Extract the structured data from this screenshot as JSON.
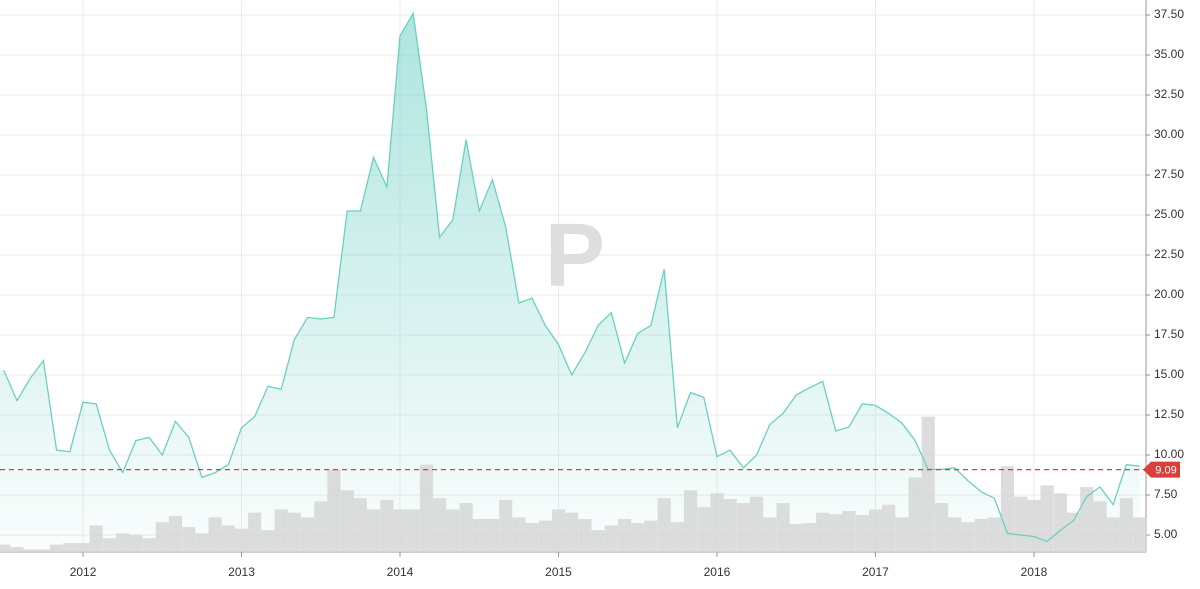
{
  "chart_data": {
    "type": "line",
    "watermark": "P",
    "color": "#6ccfc3",
    "volume_color": "#d6d6d6",
    "last_price": {
      "value": 9.09,
      "label": "9.09",
      "color": "#d9403b"
    },
    "grid": true,
    "xlim": [
      2011.476,
      2018.707
    ],
    "xticks": [
      2012,
      2013,
      2014,
      2015,
      2016,
      2017,
      2018
    ],
    "ylim": [
      3.94,
      38.44
    ],
    "yticks": [
      {
        "value": 5,
        "label": "5.00"
      },
      {
        "value": 7.5,
        "label": "7.50"
      },
      {
        "value": 10,
        "label": "10.00"
      },
      {
        "value": 12.5,
        "label": "12.50"
      },
      {
        "value": 15,
        "label": "15.00"
      },
      {
        "value": 17.5,
        "label": "17.50"
      },
      {
        "value": 20,
        "label": "20.00"
      },
      {
        "value": 22.5,
        "label": "22.50"
      },
      {
        "value": 25,
        "label": "25.00"
      },
      {
        "value": 27.5,
        "label": "27.50"
      },
      {
        "value": 30,
        "label": "30.00"
      },
      {
        "value": 32.5,
        "label": "32.50"
      },
      {
        "value": 35,
        "label": "35.00"
      },
      {
        "value": 37.5,
        "label": "37.50"
      }
    ],
    "x": [
      2011.5,
      2011.583,
      2011.667,
      2011.75,
      2011.833,
      2011.917,
      2012,
      2012.083,
      2012.167,
      2012.25,
      2012.333,
      2012.417,
      2012.5,
      2012.583,
      2012.667,
      2012.75,
      2012.833,
      2012.917,
      2013,
      2013.083,
      2013.167,
      2013.25,
      2013.333,
      2013.417,
      2013.5,
      2013.583,
      2013.667,
      2013.75,
      2013.833,
      2013.917,
      2014,
      2014.083,
      2014.167,
      2014.25,
      2014.333,
      2014.417,
      2014.5,
      2014.583,
      2014.667,
      2014.75,
      2014.833,
      2014.917,
      2015,
      2015.083,
      2015.167,
      2015.25,
      2015.333,
      2015.417,
      2015.5,
      2015.583,
      2015.667,
      2015.75,
      2015.833,
      2015.917,
      2016,
      2016.083,
      2016.167,
      2016.25,
      2016.333,
      2016.417,
      2016.5,
      2016.583,
      2016.667,
      2016.75,
      2016.833,
      2016.917,
      2017,
      2017.083,
      2017.167,
      2017.25,
      2017.333,
      2017.417,
      2017.5,
      2017.583,
      2017.667,
      2017.75,
      2017.833,
      2017.917,
      2018,
      2018.083,
      2018.167,
      2018.25,
      2018.333,
      2018.417,
      2018.5,
      2018.583,
      2018.667
    ],
    "values": [
      15.3,
      13.4,
      14.8,
      15.9,
      10.3,
      10.2,
      13.3,
      13.2,
      10.3,
      8.9,
      10.9,
      11.1,
      10.0,
      12.1,
      11.1,
      8.6,
      8.9,
      9.4,
      11.7,
      12.4,
      14.3,
      14.1,
      17.2,
      18.6,
      18.5,
      18.6,
      25.25,
      25.25,
      28.6,
      26.75,
      36.2,
      37.6,
      31.6,
      23.6,
      24.7,
      29.7,
      25.25,
      27.2,
      24.25,
      19.5,
      19.8,
      18.1,
      16.9,
      15.0,
      16.4,
      18.1,
      18.9,
      15.75,
      17.6,
      18.1,
      21.6,
      11.7,
      13.9,
      13.6,
      9.9,
      10.3,
      9.2,
      10.0,
      11.9,
      12.6,
      13.75,
      14.2,
      14.6,
      11.5,
      11.75,
      13.2,
      13.1,
      12.6,
      12.0,
      10.9,
      9.1,
      9.1,
      9.2,
      8.4,
      7.7,
      7.3,
      5.1,
      5.0,
      4.9,
      4.6,
      5.3,
      5.9,
      7.4,
      8.0,
      6.9,
      9.4,
      9.3
    ],
    "volume": [
      4.4,
      4.25,
      4.1,
      4.1,
      4.4,
      4.5,
      4.5,
      5.6,
      4.8,
      5.1,
      5.0,
      4.8,
      5.8,
      6.2,
      5.5,
      5.1,
      6.1,
      5.6,
      5.4,
      6.4,
      5.3,
      6.6,
      6.4,
      6.1,
      7.1,
      9.1,
      7.8,
      7.3,
      6.6,
      7.2,
      6.6,
      6.6,
      9.4,
      7.3,
      6.6,
      7.0,
      6.0,
      6.0,
      7.2,
      6.1,
      5.75,
      5.9,
      6.6,
      6.4,
      6.0,
      5.3,
      5.6,
      6.0,
      5.75,
      5.9,
      7.3,
      5.8,
      7.8,
      6.75,
      7.6,
      7.25,
      7.0,
      7.4,
      6.1,
      7.0,
      5.7,
      5.75,
      6.4,
      6.3,
      6.5,
      6.25,
      6.6,
      6.9,
      6.1,
      8.6,
      12.4,
      7.0,
      6.1,
      5.8,
      6.0,
      6.1,
      9.3,
      7.4,
      7.2,
      8.1,
      7.6,
      6.4,
      8.0,
      7.1,
      6.1,
      7.3,
      6.1
    ]
  }
}
